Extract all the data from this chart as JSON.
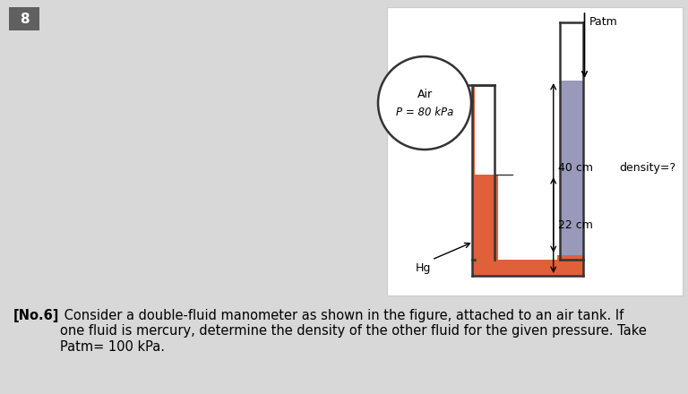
{
  "bg_color": "#d8d8d8",
  "diagram_bg": "#ffffff",
  "number_box_color": "#606060",
  "number_text": "8",
  "mercury_color": "#e0603a",
  "fluid2_color": "#9999bb",
  "air_label_line1": "Air",
  "air_label_line2": "P = 80 kPa",
  "patm_label": "Patm",
  "density_label": "density=?",
  "hg_label": "Hg",
  "label_40cm": "40 cm",
  "label_22cm": "22 cm",
  "problem_bold": "[No.6]",
  "problem_rest": " Consider a double-fluid manometer as shown in the figure, attached to an air tank. If\none fluid is mercury, determine the density of the other fluid for the given pressure. Take\nPatm= 100 kPa."
}
